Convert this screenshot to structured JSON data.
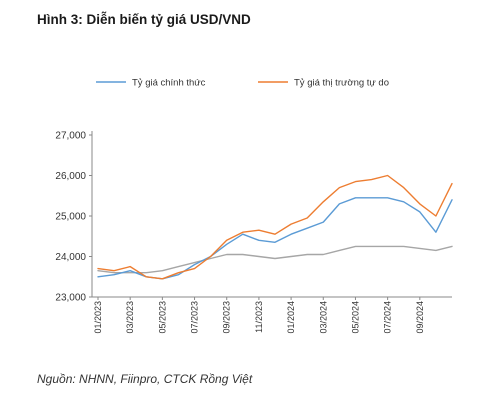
{
  "header": {
    "title": "Hình 3: Diễn biến tỷ giá USD/VND"
  },
  "footer": {
    "source": "Nguồn: NHNN, Fiinpro, CTCK Rồng Việt"
  },
  "colors": {
    "official": "#5b9bd5",
    "market": "#ed7d31",
    "central": "#a6a6a6",
    "axis": "#888888"
  },
  "chart_data": {
    "type": "line",
    "title": "Hình 3: Diễn biến tỷ giá USD/VND",
    "xlabel": "",
    "ylabel": "",
    "ylim": [
      23000,
      27000
    ],
    "yticks": [
      "23,000",
      "24,000",
      "25,000",
      "26,000",
      "27,000"
    ],
    "ytick_values": [
      23000,
      24000,
      25000,
      26000,
      27000
    ],
    "xticks": [
      "01/2023",
      "03/2023",
      "05/2023",
      "07/2023",
      "09/2023",
      "11/2023",
      "01/2024",
      "03/2024",
      "05/2024",
      "07/2024",
      "09/2024"
    ],
    "x": [
      "01/2023",
      "02/2023",
      "03/2023",
      "04/2023",
      "05/2023",
      "06/2023",
      "07/2023",
      "08/2023",
      "09/2023",
      "10/2023",
      "11/2023",
      "12/2023",
      "01/2024",
      "02/2024",
      "03/2024",
      "04/2024",
      "05/2024",
      "06/2024",
      "07/2024",
      "08/2024",
      "09/2024",
      "10/2024",
      "11/2024"
    ],
    "legend_position": "top",
    "grid": false,
    "series": [
      {
        "name": "Tỷ giá chính thức",
        "color": "#5b9bd5",
        "values": [
          23500,
          23550,
          23650,
          23500,
          23450,
          23550,
          23800,
          24000,
          24300,
          24550,
          24400,
          24350,
          24550,
          24700,
          24850,
          25300,
          25450,
          25450,
          25450,
          25350,
          25100,
          24600,
          25400
        ]
      },
      {
        "name": "Tỷ giá thị trường tự do",
        "color": "#ed7d31",
        "values": [
          23700,
          23650,
          23750,
          23500,
          23450,
          23600,
          23700,
          24000,
          24400,
          24600,
          24650,
          24550,
          24800,
          24950,
          25350,
          25700,
          25850,
          25900,
          26000,
          25700,
          25300,
          25000,
          25800
        ]
      },
      {
        "name": "",
        "color": "#a6a6a6",
        "values": [
          23650,
          23600,
          23600,
          23600,
          23650,
          23750,
          23850,
          23950,
          24050,
          24050,
          24000,
          23950,
          24000,
          24050,
          24050,
          24150,
          24250,
          24250,
          24250,
          24250,
          24200,
          24150,
          24250
        ]
      }
    ]
  }
}
